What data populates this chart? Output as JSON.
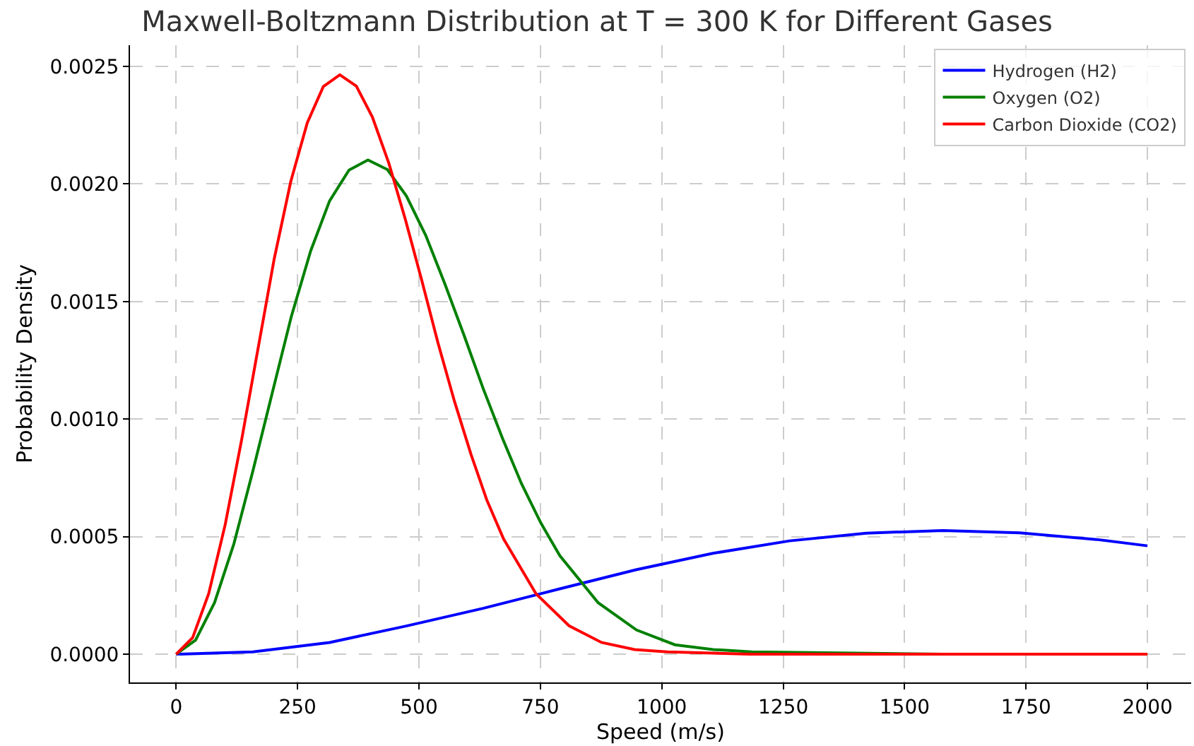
{
  "chart_data": {
    "type": "line",
    "title": "Maxwell-Boltzmann Distribution at T = 300 K for Different Gases",
    "xlabel": "Speed (m/s)",
    "ylabel": "Probability Density",
    "series": [
      {
        "name": "Hydrogen (H2)",
        "color": "#0000ff",
        "x": [
          0,
          158,
          316,
          474,
          632,
          790,
          947,
          1105,
          1263,
          1421,
          1579,
          1737,
          1895,
          2000
        ],
        "values": [
          0,
          1e-05,
          5e-05,
          0.00012,
          0.000195,
          0.000278,
          0.000359,
          0.000429,
          0.000482,
          0.000515,
          0.000526,
          0.000516,
          0.000488,
          0.000461
        ]
      },
      {
        "name": "Oxygen (O2)",
        "color": "#008000",
        "x": [
          0,
          40,
          79,
          119,
          158,
          198,
          237,
          277,
          316,
          356,
          395,
          435,
          474,
          514,
          553,
          593,
          632,
          672,
          711,
          751,
          790,
          869,
          948,
          1027,
          1106,
          1185,
          1383,
          1580,
          2000
        ],
        "values": [
          0,
          6e-05,
          0.000219,
          0.00047,
          0.000779,
          0.001112,
          0.001435,
          0.001715,
          0.001928,
          0.002059,
          0.002102,
          0.002061,
          0.001949,
          0.001781,
          0.001577,
          0.001355,
          0.001131,
          0.000918,
          0.000726,
          0.000558,
          0.000419,
          0.000219,
          0.000103,
          4e-05,
          2e-05,
          1e-05,
          null,
          0,
          0
        ]
      },
      {
        "name": "Carbon Dioxide (CO2)",
        "color": "#ff0000",
        "x": [
          0,
          34,
          67,
          101,
          135,
          169,
          202,
          236,
          270,
          303,
          337,
          371,
          404,
          438,
          472,
          506,
          539,
          573,
          607,
          640,
          674,
          741,
          809,
          876,
          944,
          1011,
          1180,
          1348,
          2000
        ],
        "values": [
          0,
          7e-05,
          0.000257,
          0.000551,
          0.000913,
          0.001304,
          0.001682,
          0.00201,
          0.00226,
          0.002414,
          0.002464,
          0.002416,
          0.002285,
          0.002088,
          0.001849,
          0.001588,
          0.001325,
          0.001076,
          0.000851,
          0.000654,
          0.000491,
          0.000257,
          0.000121,
          5e-05,
          2e-05,
          1e-05,
          0,
          0,
          0
        ]
      }
    ],
    "xlim": [
      -95,
      2090
    ],
    "xticks": [
      0,
      250,
      500,
      750,
      1000,
      1250,
      1500,
      1750,
      2000
    ],
    "ylim": [
      -0.00012,
      0.00259
    ],
    "yticks": [
      {
        "value": 0,
        "label": "0.0000"
      },
      {
        "value": 0.0005,
        "label": "0.0005"
      },
      {
        "value": 0.001,
        "label": "0.0010"
      },
      {
        "value": 0.0015,
        "label": "0.0015"
      },
      {
        "value": 0.002,
        "label": "0.0020"
      },
      {
        "value": 0.0025,
        "label": "0.0025"
      }
    ],
    "grid": true,
    "legend": "top right",
    "line_style": "solid",
    "marker": "none"
  }
}
